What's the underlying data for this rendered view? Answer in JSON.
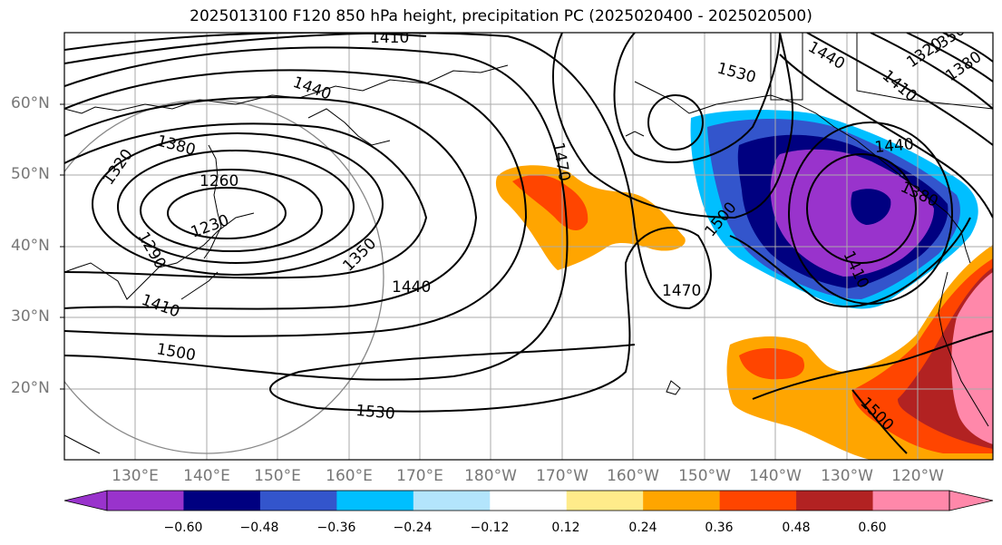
{
  "title": "2025013100 F120 850 hPa height, precipitation PC (2025020400 - 2025020500)",
  "latitudes": [
    "60°N",
    "50°N",
    "40°N",
    "30°N",
    "20°N"
  ],
  "longitudes": [
    "130°E",
    "140°E",
    "150°E",
    "160°E",
    "170°E",
    "180°W",
    "170°W",
    "160°W",
    "150°W",
    "140°W",
    "130°W",
    "120°W"
  ],
  "contour_labels": [
    "1410",
    "1440",
    "1530",
    "1470",
    "1380",
    "1320",
    "1260",
    "1290",
    "1230",
    "1350",
    "1440",
    "1410",
    "1500",
    "1530",
    "1470",
    "1500",
    "1440",
    "1380",
    "1410",
    "1500",
    "1440",
    "1350",
    "1320",
    "1410",
    "1380"
  ],
  "colorbar": {
    "ticks": [
      "−0.60",
      "−0.48",
      "−0.36",
      "−0.24",
      "−0.12",
      "0.12",
      "0.24",
      "0.36",
      "0.48",
      "0.60"
    ],
    "colors": [
      "#9933cc",
      "#000080",
      "#3355cc",
      "#00bfff",
      "#b3e5fc",
      "#ffffff",
      "#ffeb8a",
      "#ffa500",
      "#ff4500",
      "#b22222",
      "#ff88aa"
    ]
  }
}
